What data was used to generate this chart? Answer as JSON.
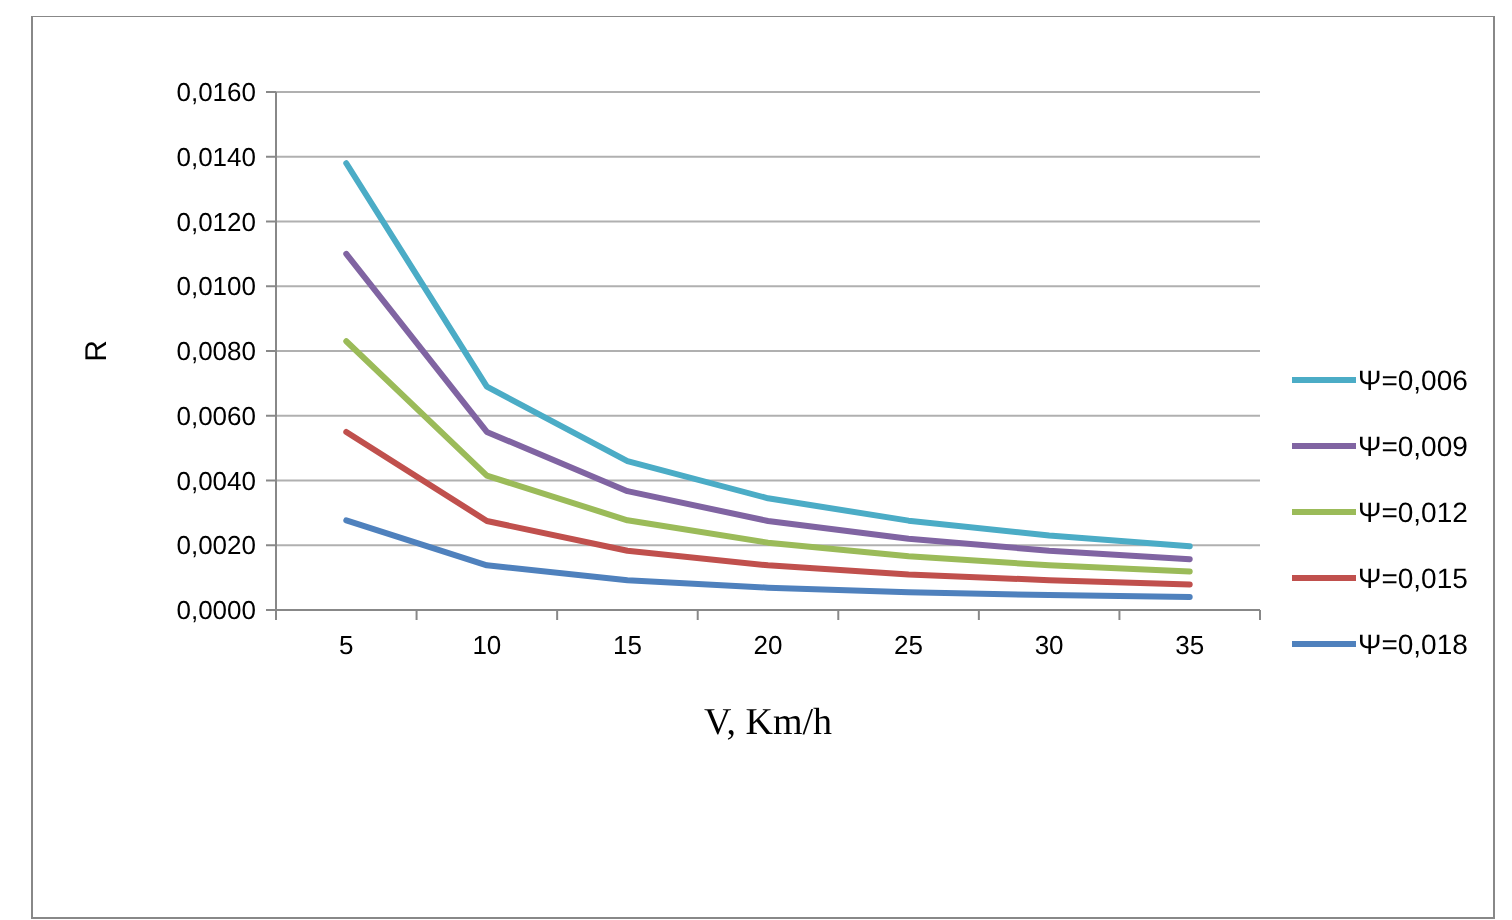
{
  "chart_data": {
    "type": "line",
    "xlabel": "V, Km/h",
    "ylabel": "R",
    "categories": [
      "5",
      "10",
      "15",
      "20",
      "25",
      "30",
      "35"
    ],
    "series": [
      {
        "name": "Ψ=0,006",
        "color": "#4bacc6",
        "values": [
          0.0138,
          0.0069,
          0.0046,
          0.00345,
          0.00276,
          0.0023,
          0.00197
        ]
      },
      {
        "name": "Ψ=0,009",
        "color": "#8064a2",
        "values": [
          0.011,
          0.0055,
          0.00367,
          0.00275,
          0.0022,
          0.00183,
          0.00157
        ]
      },
      {
        "name": "Ψ=0,012",
        "color": "#9bbb59",
        "values": [
          0.0083,
          0.00415,
          0.00277,
          0.00208,
          0.00166,
          0.00138,
          0.00119
        ]
      },
      {
        "name": "Ψ=0,015",
        "color": "#c0504d",
        "values": [
          0.0055,
          0.00275,
          0.00183,
          0.00138,
          0.0011,
          0.00092,
          0.00079
        ]
      },
      {
        "name": "Ψ=0,018",
        "color": "#4f81bd",
        "values": [
          0.00277,
          0.00138,
          0.00092,
          0.00069,
          0.00055,
          0.00046,
          0.0004
        ]
      }
    ],
    "ylim": [
      0,
      0.016
    ],
    "yticks": [
      {
        "value": 0,
        "label": "0,0000"
      },
      {
        "value": 0.002,
        "label": "0,0020"
      },
      {
        "value": 0.004,
        "label": "0,0040"
      },
      {
        "value": 0.006,
        "label": "0,0060"
      },
      {
        "value": 0.008,
        "label": "0,0080"
      },
      {
        "value": 0.01,
        "label": "0,0100"
      },
      {
        "value": 0.012,
        "label": "0,0120"
      },
      {
        "value": 0.014,
        "label": "0,0140"
      },
      {
        "value": 0.016,
        "label": "0,0160"
      }
    ],
    "grid": "y",
    "legend": "right",
    "marker": "none",
    "line_style": "solid"
  }
}
